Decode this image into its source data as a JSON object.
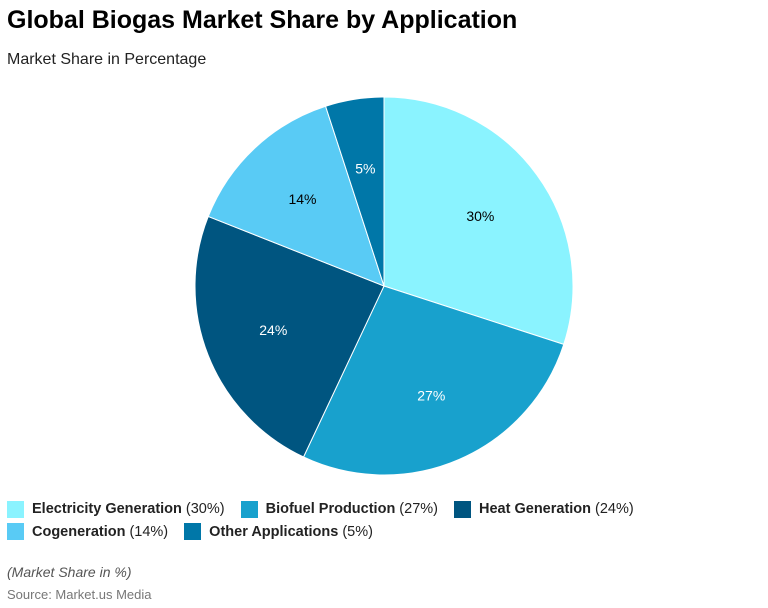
{
  "title": "Global Biogas Market Share by Application",
  "subtitle": "Market Share in Percentage",
  "note": "(Market Share in %)",
  "source": "Source: Market.us Media",
  "chart_data": {
    "type": "pie",
    "title": "Global Biogas Market Share by Application",
    "subtitle": "Market Share in Percentage",
    "categories": [
      "Electricity Generation",
      "Biofuel Production",
      "Heat Generation",
      "Cogeneration",
      "Other Applications"
    ],
    "values": [
      30,
      27,
      24,
      14,
      5
    ],
    "labels": [
      "30%",
      "27%",
      "24%",
      "14%",
      "5%"
    ],
    "legend_pcts": [
      "(30%)",
      "(27%)",
      "(24%)",
      "(14%)",
      "(5%)"
    ],
    "colors": [
      "#8AF3FF",
      "#18A1CD",
      "#005580",
      "#59CBF5",
      "#0077A8"
    ],
    "label_colors": [
      "#000000",
      "#ffffff",
      "#ffffff",
      "#000000",
      "#ffffff"
    ],
    "legend": "bottom"
  }
}
